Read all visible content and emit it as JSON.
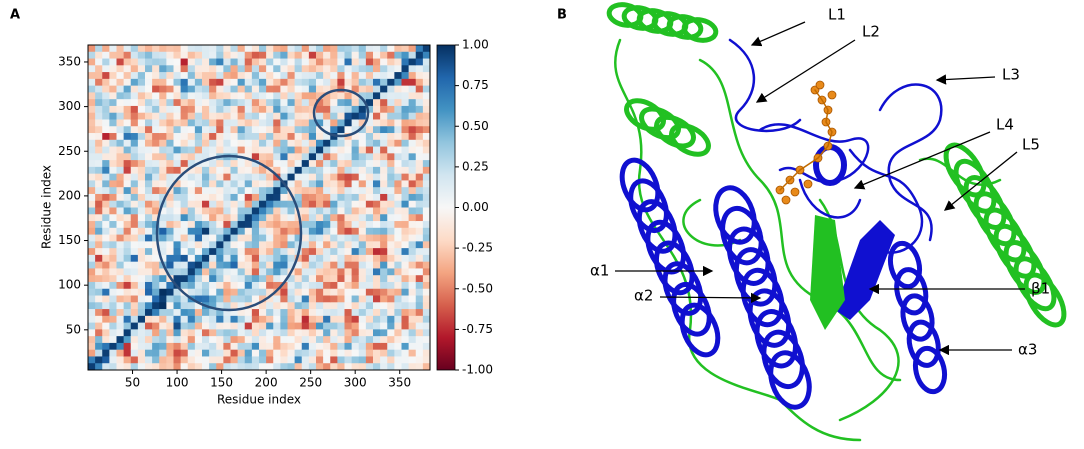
{
  "chart_data": {
    "type": "heatmap",
    "panel_label": "A",
    "xlabel": "Residue index",
    "ylabel": "Residue index",
    "xlim": [
      0,
      384
    ],
    "ylim": [
      5,
      369
    ],
    "xticks": [
      50,
      100,
      150,
      200,
      250,
      300,
      350
    ],
    "yticks": [
      50,
      100,
      150,
      200,
      250,
      300,
      350
    ],
    "colorbar": {
      "lim": [
        -1,
        1
      ],
      "colormap": "RdBu",
      "ticks": [
        {
          "value": 1,
          "label": "1.00"
        },
        {
          "value": 0.75,
          "label": "0.75"
        },
        {
          "value": 0.5,
          "label": "0.50"
        },
        {
          "value": 0.25,
          "label": "0.25"
        },
        {
          "value": 0,
          "label": "0.00"
        },
        {
          "value": -0.25,
          "label": "-0.25"
        },
        {
          "value": -0.5,
          "label": "-0.50"
        },
        {
          "value": -0.75,
          "label": "-0.75"
        },
        {
          "value": -1,
          "label": "-1.00"
        }
      ]
    }
  },
  "structure": {
    "panel_label": "B",
    "annotations": [
      "L1",
      "L2",
      "L3",
      "L4",
      "L5",
      "α1",
      "α2",
      "β1",
      "α3"
    ]
  }
}
